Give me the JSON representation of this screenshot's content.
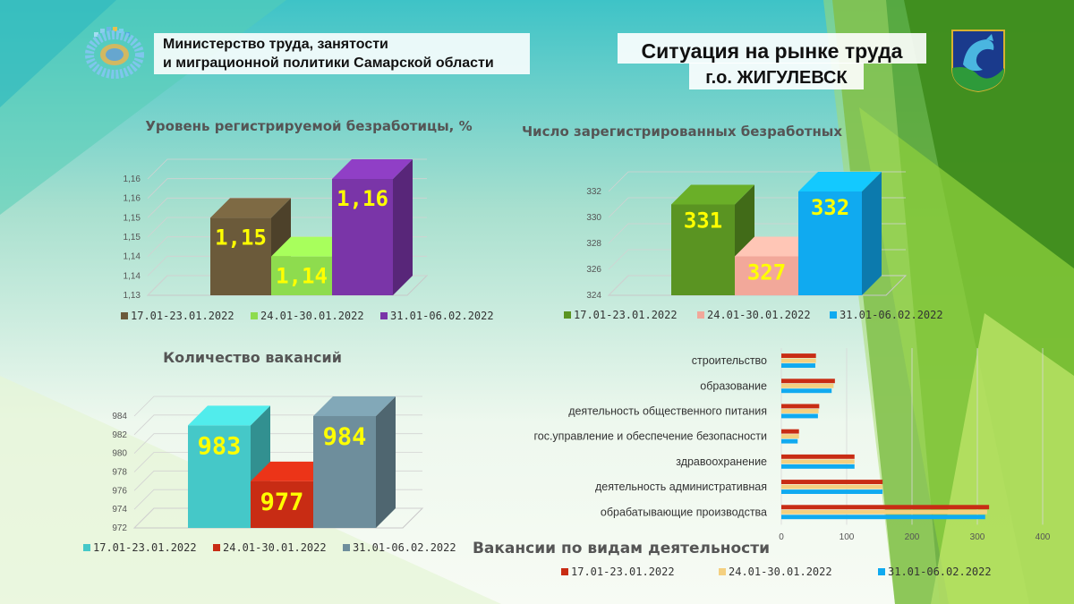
{
  "header": {
    "ministry_line1": "Министерство труда, занятости",
    "ministry_line2": "и миграционной политики Самарской области",
    "title": "Ситуация на рынке труда",
    "subtitle": "г.о. ЖИГУЛЕВСК"
  },
  "colors": {
    "green_dark": "#5a9e1a",
    "green_light": "#9ad04a",
    "teal": "#4dd0c7"
  },
  "chart_data": [
    {
      "type": "bar",
      "title": "Уровень регистрируемой безработицы, %",
      "categories": [
        "17.01-23.01.2022",
        "24.01-30.01.2022",
        "31.01-06.02.2022"
      ],
      "values": [
        1.15,
        1.14,
        1.16
      ],
      "value_labels": [
        "1,15",
        "1,14",
        "1,16"
      ],
      "ylim": [
        1.13,
        1.16
      ],
      "yticks": [
        "1,13",
        "1,14",
        "1,14",
        "1,15",
        "1,15",
        "1,16",
        "1,16"
      ],
      "colors": [
        "#6b5a3a",
        "#8edc4e",
        "#7a35a8"
      ],
      "legend": "bottom"
    },
    {
      "type": "bar",
      "title": "Число зарегистрированных безработных",
      "categories": [
        "17.01-23.01.2022",
        "24.01-30.01.2022",
        "31.01-06.02.2022"
      ],
      "values": [
        331,
        327,
        332
      ],
      "value_labels": [
        "331",
        "327",
        "332"
      ],
      "ylim": [
        324,
        332
      ],
      "yticks": [
        "324",
        "326",
        "328",
        "330",
        "332"
      ],
      "colors": [
        "#5a9422",
        "#f2a89a",
        "#10aaf0"
      ],
      "legend": "bottom"
    },
    {
      "type": "bar",
      "title": "Количество вакансий",
      "categories": [
        "17.01-23.01.2022",
        "24.01-30.01.2022",
        "31.01-06.02.2022"
      ],
      "values": [
        983,
        977,
        984
      ],
      "value_labels": [
        "983",
        "977",
        "984"
      ],
      "ylim": [
        972,
        984
      ],
      "yticks": [
        "972",
        "974",
        "976",
        "978",
        "980",
        "982",
        "984"
      ],
      "colors": [
        "#45c8c8",
        "#c82c14",
        "#6e8e9c"
      ],
      "legend": "bottom"
    },
    {
      "type": "bar",
      "orientation": "horizontal",
      "title": "Вакансии по видам деятельности",
      "categories": [
        "строительство",
        "образование",
        "деятельность общественного питания",
        "гос.управление и обеспечение безопасности",
        "здравоохранение",
        "деятельность административная",
        "обрабатывающие производства"
      ],
      "series": [
        {
          "name": "17.01-23.01.2022",
          "color": "#c82c14",
          "values": [
            53,
            82,
            58,
            27,
            112,
            155,
            318
          ]
        },
        {
          "name": "24.01-30.01.2022",
          "color": "#f4d080",
          "values": [
            53,
            80,
            57,
            27,
            112,
            155,
            315
          ]
        },
        {
          "name": "31.01-06.02.2022",
          "color": "#10aaf0",
          "values": [
            52,
            77,
            56,
            25,
            112,
            155,
            312
          ]
        }
      ],
      "xlim": [
        0,
        400
      ],
      "xticks": [
        "0",
        "100",
        "200",
        "300",
        "400"
      ],
      "legend": "bottom"
    }
  ]
}
